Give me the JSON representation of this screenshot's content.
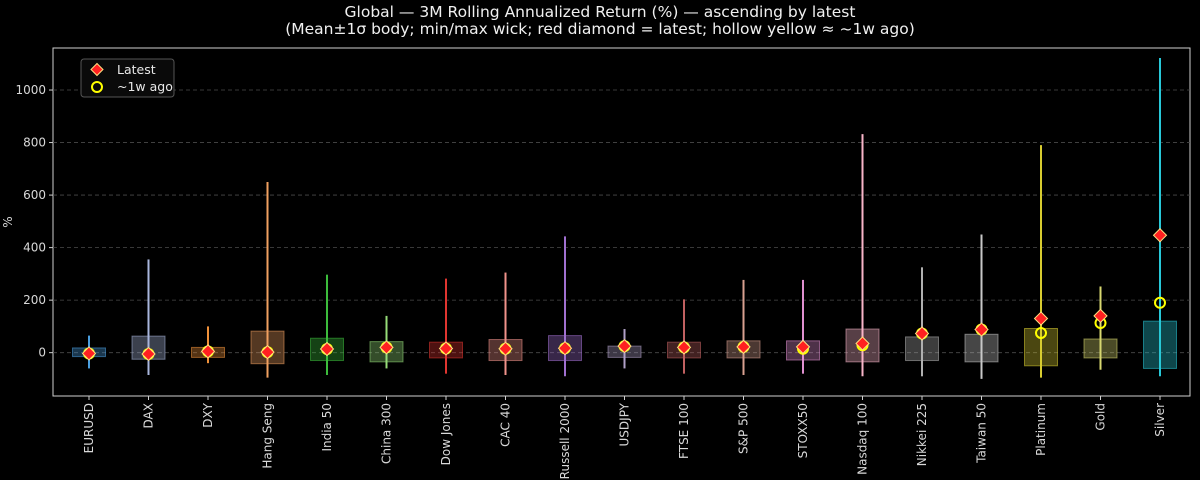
{
  "chart_data": {
    "type": "candlestick-range",
    "title": "Global — 3M Rolling Annualized Return (%) — ascending by latest",
    "subtitle": "(Mean±1σ body; min/max wick; red diamond = latest; hollow yellow ≈ ~1w ago)",
    "xlabel": "",
    "ylabel": "%",
    "ylim": [
      -165,
      1160
    ],
    "yticks": [
      0,
      200,
      400,
      600,
      800,
      1000
    ],
    "grid": "horizontal-dashed",
    "legend": {
      "placement": "top-left",
      "entries": [
        {
          "label": "Latest",
          "marker": "red-diamond"
        },
        {
          "label": "~1w ago",
          "marker": "hollow-yellow-circle"
        }
      ]
    },
    "categories": [
      "EURUSD",
      "DAX",
      "DXY",
      "Hang Seng",
      "India 50",
      "China 300",
      "Dow Jones",
      "CAC 40",
      "Russell 2000",
      "USDJPY",
      "FTSE 100",
      "S&P 500",
      "STOXX50",
      "Nasdaq 100",
      "Nikkei 225",
      "Taiwan 50",
      "Platinum",
      "Gold",
      "Silver"
    ],
    "series": [
      {
        "name": "Latest",
        "values": [
          -3,
          -5,
          5,
          2,
          14,
          20,
          16,
          15,
          17,
          25,
          20,
          22,
          22,
          35,
          73,
          88,
          130,
          140,
          447
        ]
      },
      {
        "name": "~1w ago",
        "values": [
          -3,
          -5,
          5,
          2,
          14,
          20,
          16,
          15,
          17,
          25,
          20,
          22,
          15,
          28,
          73,
          88,
          75,
          113,
          190
        ]
      },
      {
        "name": "Mean-1σ",
        "values": [
          -15,
          -25,
          -18,
          -42,
          -30,
          -35,
          -20,
          -30,
          -30,
          -18,
          -20,
          -20,
          -28,
          -35,
          -30,
          -35,
          -50,
          -20,
          -60
        ]
      },
      {
        "name": "Mean+1σ",
        "values": [
          18,
          63,
          20,
          82,
          55,
          42,
          40,
          50,
          65,
          25,
          40,
          45,
          45,
          90,
          60,
          70,
          92,
          52,
          120
        ]
      },
      {
        "name": "Min",
        "values": [
          -60,
          -85,
          -40,
          -95,
          -85,
          -60,
          -80,
          -85,
          -90,
          -60,
          -80,
          -85,
          -80,
          -90,
          -90,
          -100,
          -95,
          -65,
          -90
        ]
      },
      {
        "name": "Max",
        "values": [
          65,
          355,
          100,
          650,
          297,
          140,
          282,
          305,
          443,
          90,
          203,
          277,
          277,
          832,
          325,
          450,
          790,
          252,
          1122
        ]
      }
    ],
    "colors": [
      "#4a9fe0",
      "#a9b6dd",
      "#f0913a",
      "#f0a060",
      "#3cbc3c",
      "#96dc78",
      "#e03530",
      "#f0928a",
      "#a070d0",
      "#b0a0c8",
      "#c06060",
      "#d8a090",
      "#e090d0",
      "#f8b4c8",
      "#b0b0b0",
      "#c8c8c8",
      "#d8cc30",
      "#d8d870",
      "#28c8d8"
    ],
    "marker_colors": {
      "latest": "#ff2020",
      "latest_edge": "#ffe080",
      "week_ago": "#ffff00"
    }
  }
}
